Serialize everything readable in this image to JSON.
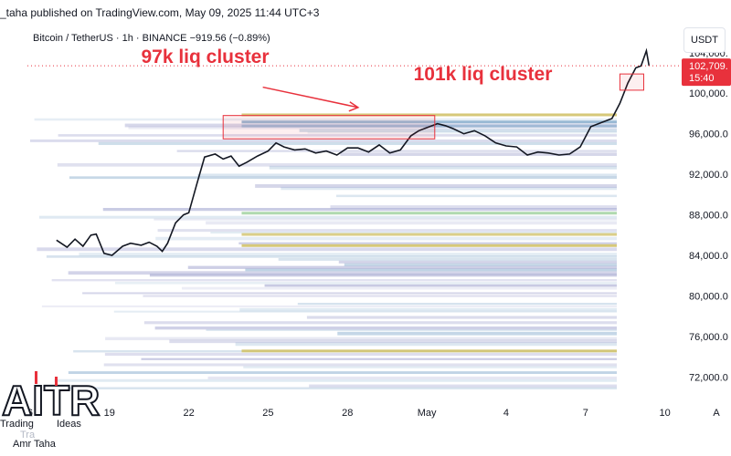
{
  "header": {
    "published": "_taha published on TradingView.com, May 09, 2025 11:44 UTC+3"
  },
  "symbol": {
    "line": "Bitcoin / TetherUS · 1h · BINANCE  −919.56 (−0.89%)"
  },
  "currency": {
    "label": "USDT"
  },
  "logo": {
    "line1": "Trading",
    "line2": "Ideas",
    "line3": "Amr Taha",
    "letters": "AITR",
    "watermark": "Tra"
  },
  "colors": {
    "price_line": "#e8313c",
    "candle": "#131722",
    "annotation": "#e8313c",
    "heatmap_purple": "#8c8fc4",
    "heatmap_blue": "#7fa7c9",
    "heatmap_yellow": "#d2c26a",
    "heatmap_green": "#9bcf9b"
  },
  "chart_data": {
    "type": "line",
    "title": "",
    "xlabel": "",
    "ylabel": "",
    "y_axis_side": "right",
    "ylim": [
      70500,
      106500
    ],
    "y_ticks": [
      {
        "value": 104000,
        "label": "104,000."
      },
      {
        "value": 100000,
        "label": "100,000."
      },
      {
        "value": 96000,
        "label": "96,000.0"
      },
      {
        "value": 92000,
        "label": "92,000.0"
      },
      {
        "value": 88000,
        "label": "88,000.0"
      },
      {
        "value": 84000,
        "label": "84,000.0"
      },
      {
        "value": 80000,
        "label": "80,000.0"
      },
      {
        "value": 76000,
        "label": "76,000.0"
      },
      {
        "value": 72000,
        "label": "72,000.0"
      }
    ],
    "x_ticks": [
      {
        "day": 16,
        "label": "6"
      },
      {
        "day": 19,
        "label": "19"
      },
      {
        "day": 22,
        "label": "22"
      },
      {
        "day": 25,
        "label": "25"
      },
      {
        "day": 28,
        "label": "28"
      },
      {
        "day": 31,
        "label": "May"
      },
      {
        "day": 34,
        "label": "4"
      },
      {
        "day": 37,
        "label": "7"
      },
      {
        "day": 40,
        "label": "10"
      }
    ],
    "x_range_days": [
      15.9,
      40.6
    ],
    "current_price": {
      "label": "102,709.",
      "countdown": "15:40",
      "value": 102709
    },
    "series": [
      {
        "price": [
          [
            17.0,
            85500
          ],
          [
            17.4,
            84800
          ],
          [
            17.7,
            85600
          ],
          [
            18.0,
            84900
          ],
          [
            18.3,
            86000
          ],
          [
            18.5,
            86100
          ],
          [
            18.8,
            84200
          ],
          [
            19.1,
            84000
          ],
          [
            19.5,
            84900
          ],
          [
            19.8,
            85200
          ],
          [
            20.2,
            85000
          ],
          [
            20.5,
            85300
          ],
          [
            20.8,
            84900
          ],
          [
            21.0,
            84400
          ],
          [
            21.2,
            85200
          ],
          [
            21.5,
            87200
          ],
          [
            21.8,
            88000
          ],
          [
            22.0,
            88200
          ],
          [
            22.3,
            91000
          ],
          [
            22.6,
            93700
          ],
          [
            23.0,
            94000
          ],
          [
            23.3,
            93500
          ],
          [
            23.6,
            93800
          ],
          [
            23.9,
            92800
          ],
          [
            24.2,
            93200
          ],
          [
            24.6,
            93800
          ],
          [
            25.0,
            94300
          ],
          [
            25.3,
            95100
          ],
          [
            25.6,
            94700
          ],
          [
            26.0,
            94400
          ],
          [
            26.4,
            94500
          ],
          [
            26.8,
            94100
          ],
          [
            27.2,
            94300
          ],
          [
            27.6,
            93900
          ],
          [
            28.0,
            94600
          ],
          [
            28.4,
            94600
          ],
          [
            28.8,
            94200
          ],
          [
            29.2,
            94900
          ],
          [
            29.6,
            94100
          ],
          [
            30.0,
            94400
          ],
          [
            30.4,
            95800
          ],
          [
            30.7,
            96300
          ],
          [
            31.0,
            96600
          ],
          [
            31.4,
            97000
          ],
          [
            31.7,
            96800
          ],
          [
            32.0,
            96500
          ],
          [
            32.4,
            96000
          ],
          [
            32.8,
            96300
          ],
          [
            33.2,
            95800
          ],
          [
            33.6,
            95100
          ],
          [
            34.0,
            94800
          ],
          [
            34.4,
            94700
          ],
          [
            34.8,
            93900
          ],
          [
            35.2,
            94200
          ],
          [
            35.6,
            94100
          ],
          [
            36.0,
            93900
          ],
          [
            36.4,
            94000
          ],
          [
            36.8,
            94700
          ],
          [
            37.2,
            96700
          ],
          [
            37.6,
            97100
          ],
          [
            38.0,
            97500
          ],
          [
            38.3,
            99000
          ],
          [
            38.6,
            101000
          ],
          [
            38.9,
            102500
          ],
          [
            39.1,
            102700
          ],
          [
            39.3,
            104200
          ],
          [
            39.4,
            102709
          ]
        ]
      }
    ],
    "rects": [
      {
        "x1": 23.3,
        "x2": 31.3,
        "y1": 95500,
        "y2": 97800
      },
      {
        "x1": 38.3,
        "x2": 39.2,
        "y1": 100300,
        "y2": 101900
      }
    ],
    "annotations": [
      {
        "text": "97k liq cluster",
        "day": 20.2,
        "price": 103000
      },
      {
        "text": "101k liq cluster",
        "day": 30.5,
        "price": 101300
      }
    ]
  }
}
